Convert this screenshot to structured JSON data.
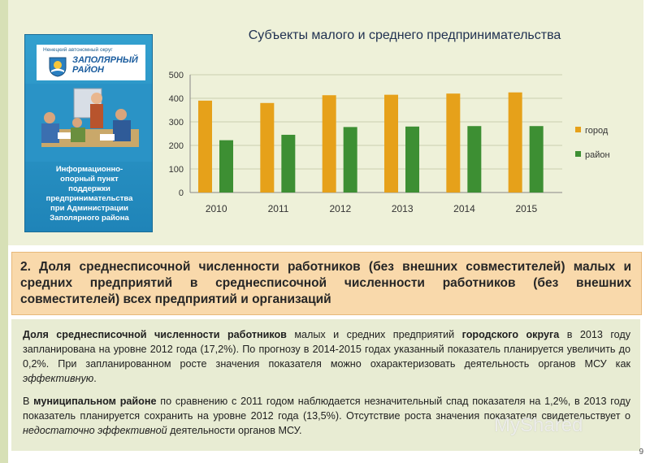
{
  "chart_data": {
    "type": "bar",
    "title": "Субъекты малого и среднего предпринимательства",
    "categories": [
      "2010",
      "2011",
      "2012",
      "2013",
      "2014",
      "2015"
    ],
    "series": [
      {
        "name": "город",
        "values": [
          390,
          380,
          413,
          415,
          420,
          425
        ],
        "color": "#e6a11a"
      },
      {
        "name": "район",
        "values": [
          222,
          245,
          278,
          280,
          282,
          282
        ],
        "color": "#3d8f33"
      }
    ],
    "yticks": [
      "0",
      "100",
      "200",
      "300",
      "400",
      "500"
    ],
    "ylim": [
      0,
      500
    ],
    "grid": true,
    "legend_position": "right"
  },
  "brochure": {
    "small_text": "Ненецкий автономный округ",
    "title_line1": "ЗАПОЛЯРНЫЙ",
    "title_line2": "РАЙОН",
    "body_text": "Информационно-\nопорный пункт\nподдержки\nпредпринимательства\nпри Администрации\nЗаполярного района"
  },
  "section": {
    "heading": "2. Доля среднесписочной численности работников (без внешних совместителей) малых и средних предприятий в среднесписочной численности работников (без внешних совместителей) всех предприятий и организаций"
  },
  "paragraph1": {
    "b1": "Доля среднесписочной численности работников",
    "t1": " малых и средних предприятий ",
    "b2": "городского округа",
    "t2": " в 2013 году запланирована на уровне 2012 года (17,2%). По прогнозу в 2014-2015 годах указанный показатель планируется увеличить до 0,2%. При запланированном росте значения показателя можно охарактеризовать деятельность органов МСУ как ",
    "i1": "эффективную",
    "t3": "."
  },
  "paragraph2": {
    "t1": "В ",
    "b1": "муниципальном районе",
    "t2": " по сравнению с 2011 годом наблюдается незначительный спад показателя на 1,2%, в 2013 году показатель планируется сохранить на уровне 2012 года (13,5%). Отсутствие роста значения показателя свидетельствует о ",
    "i1": "недостаточно эффективной",
    "t3": " деятельности органов МСУ."
  },
  "page_number": "9",
  "watermark": "MyShared"
}
